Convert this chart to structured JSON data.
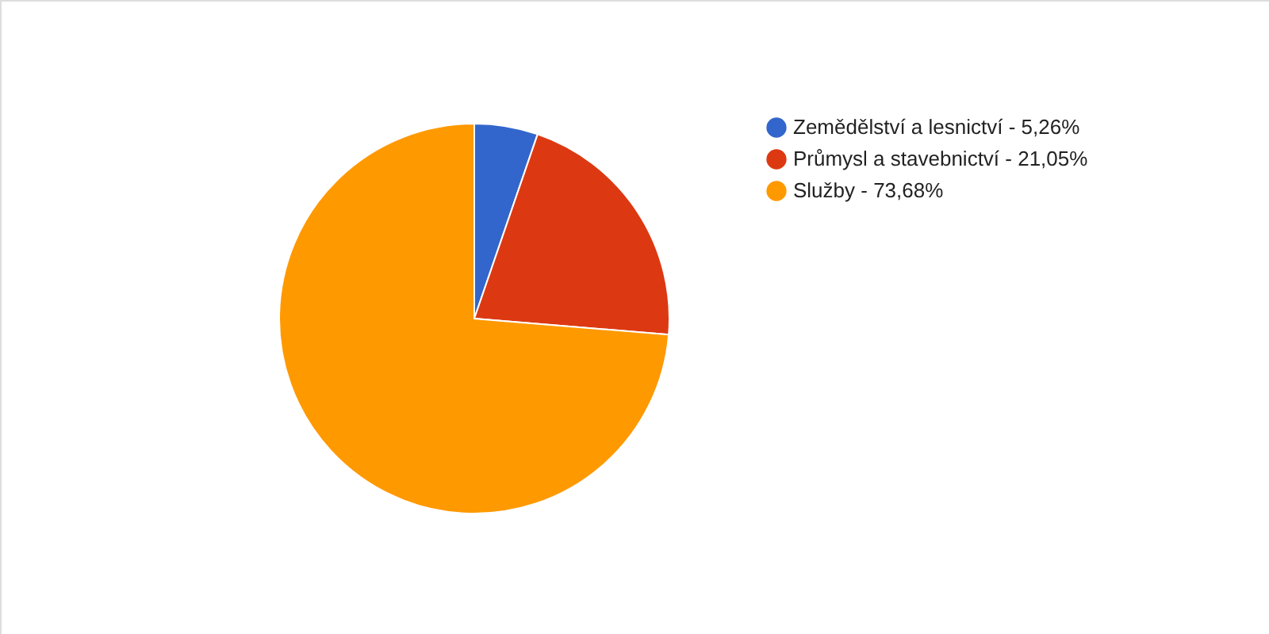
{
  "chart_data": {
    "type": "pie",
    "categories": [
      "Zemědělství a lesnictví - 5,26%",
      "Průmysl a stavebnictví - 21,05%",
      "Služby - 73,68%"
    ],
    "values": [
      5.26,
      21.05,
      73.68
    ],
    "colors": [
      "#3366cc",
      "#dc3912",
      "#ff9900"
    ],
    "legend": "right"
  }
}
